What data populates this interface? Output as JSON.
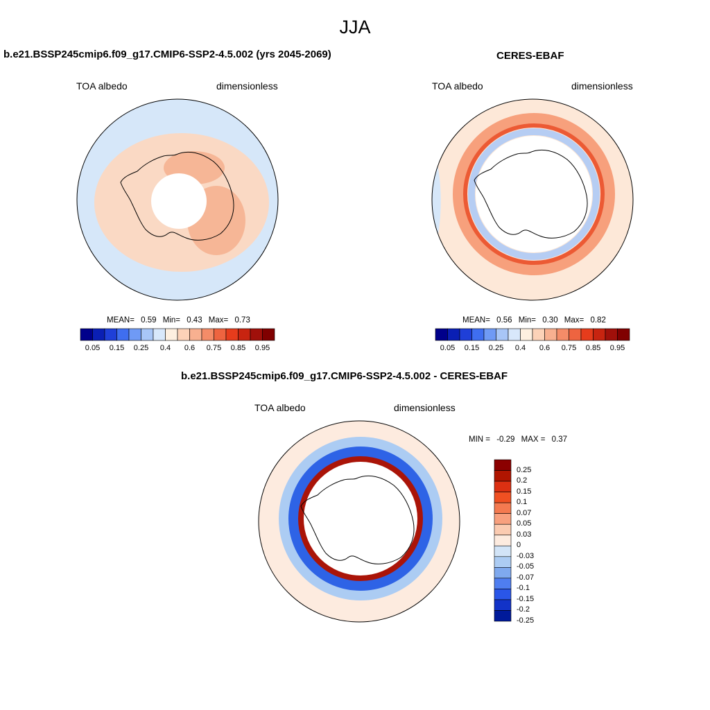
{
  "figure": {
    "season": "JJA"
  },
  "panels": {
    "model": {
      "title": "b.e21.BSSP245cmip6.f09_g17.CMIP6-SSP2-4.5.002 (yrs 2045-2069)",
      "variable": "TOA albedo",
      "units": "dimensionless",
      "stats": {
        "mean_label": "MEAN=",
        "mean": "0.59",
        "min_label": "Min=",
        "min": "0.43",
        "max_label": "Max=",
        "max": "0.73"
      }
    },
    "obs": {
      "title": "CERES-EBAF",
      "variable": "TOA albedo",
      "units": "dimensionless",
      "stats": {
        "mean_label": "MEAN=",
        "mean": "0.56",
        "min_label": "Min=",
        "min": "0.30",
        "max_label": "Max=",
        "max": "0.82"
      }
    },
    "diff": {
      "title": "b.e21.BSSP245cmip6.f09_g17.CMIP6-SSP2-4.5.002 - CERES-EBAF",
      "variable": "TOA albedo",
      "units": "dimensionless",
      "stats": {
        "min_label": "MIN =",
        "min": "-0.29",
        "max_label": "MAX =",
        "max": "0.37"
      }
    }
  },
  "colorbars": {
    "abs": {
      "colors": [
        "#00008b",
        "#0a1fb4",
        "#1f3fd8",
        "#3f6ef0",
        "#6f9af5",
        "#a8c6f7",
        "#d8e8fb",
        "#fdefe0",
        "#fcd2b8",
        "#f8b090",
        "#f48c68",
        "#ee6440",
        "#e63c1c",
        "#c82410",
        "#a0100a",
        "#800000"
      ],
      "tick_labels": [
        "0.05",
        "0.15",
        "0.25",
        "0.4",
        "0.6",
        "0.75",
        "0.85",
        "0.95"
      ]
    },
    "diff": {
      "colors": [
        "#8b0000",
        "#b01500",
        "#dc3012",
        "#f05022",
        "#f47a50",
        "#f8a07e",
        "#fbcbb1",
        "#fdebdf",
        "#d2e4f7",
        "#acccf3",
        "#7fa9ee",
        "#4f7ef0",
        "#2a56e8",
        "#1233c8",
        "#001a9a"
      ],
      "tick_labels": [
        "0.25",
        "0.2",
        "0.15",
        "0.1",
        "0.07",
        "0.05",
        "0.03",
        "0",
        "-0.03",
        "-0.05",
        "-0.07",
        "-0.1",
        "-0.15",
        "-0.2",
        "-0.25"
      ]
    }
  },
  "map_colors": {
    "ocean_light_blue": "#d6e7f9",
    "model_albedo": "#fad9c4",
    "model_high_albedo": "#f6b696",
    "obs_background": "#fde8d8",
    "obs_ring_red": "#ec5a34",
    "obs_ring_orange": "#f7a07c",
    "obs_ring_blue": "#b6cdf3",
    "diff_blue": "#2e63e6",
    "diff_red": "#aa1408",
    "coastline": "#000000"
  }
}
